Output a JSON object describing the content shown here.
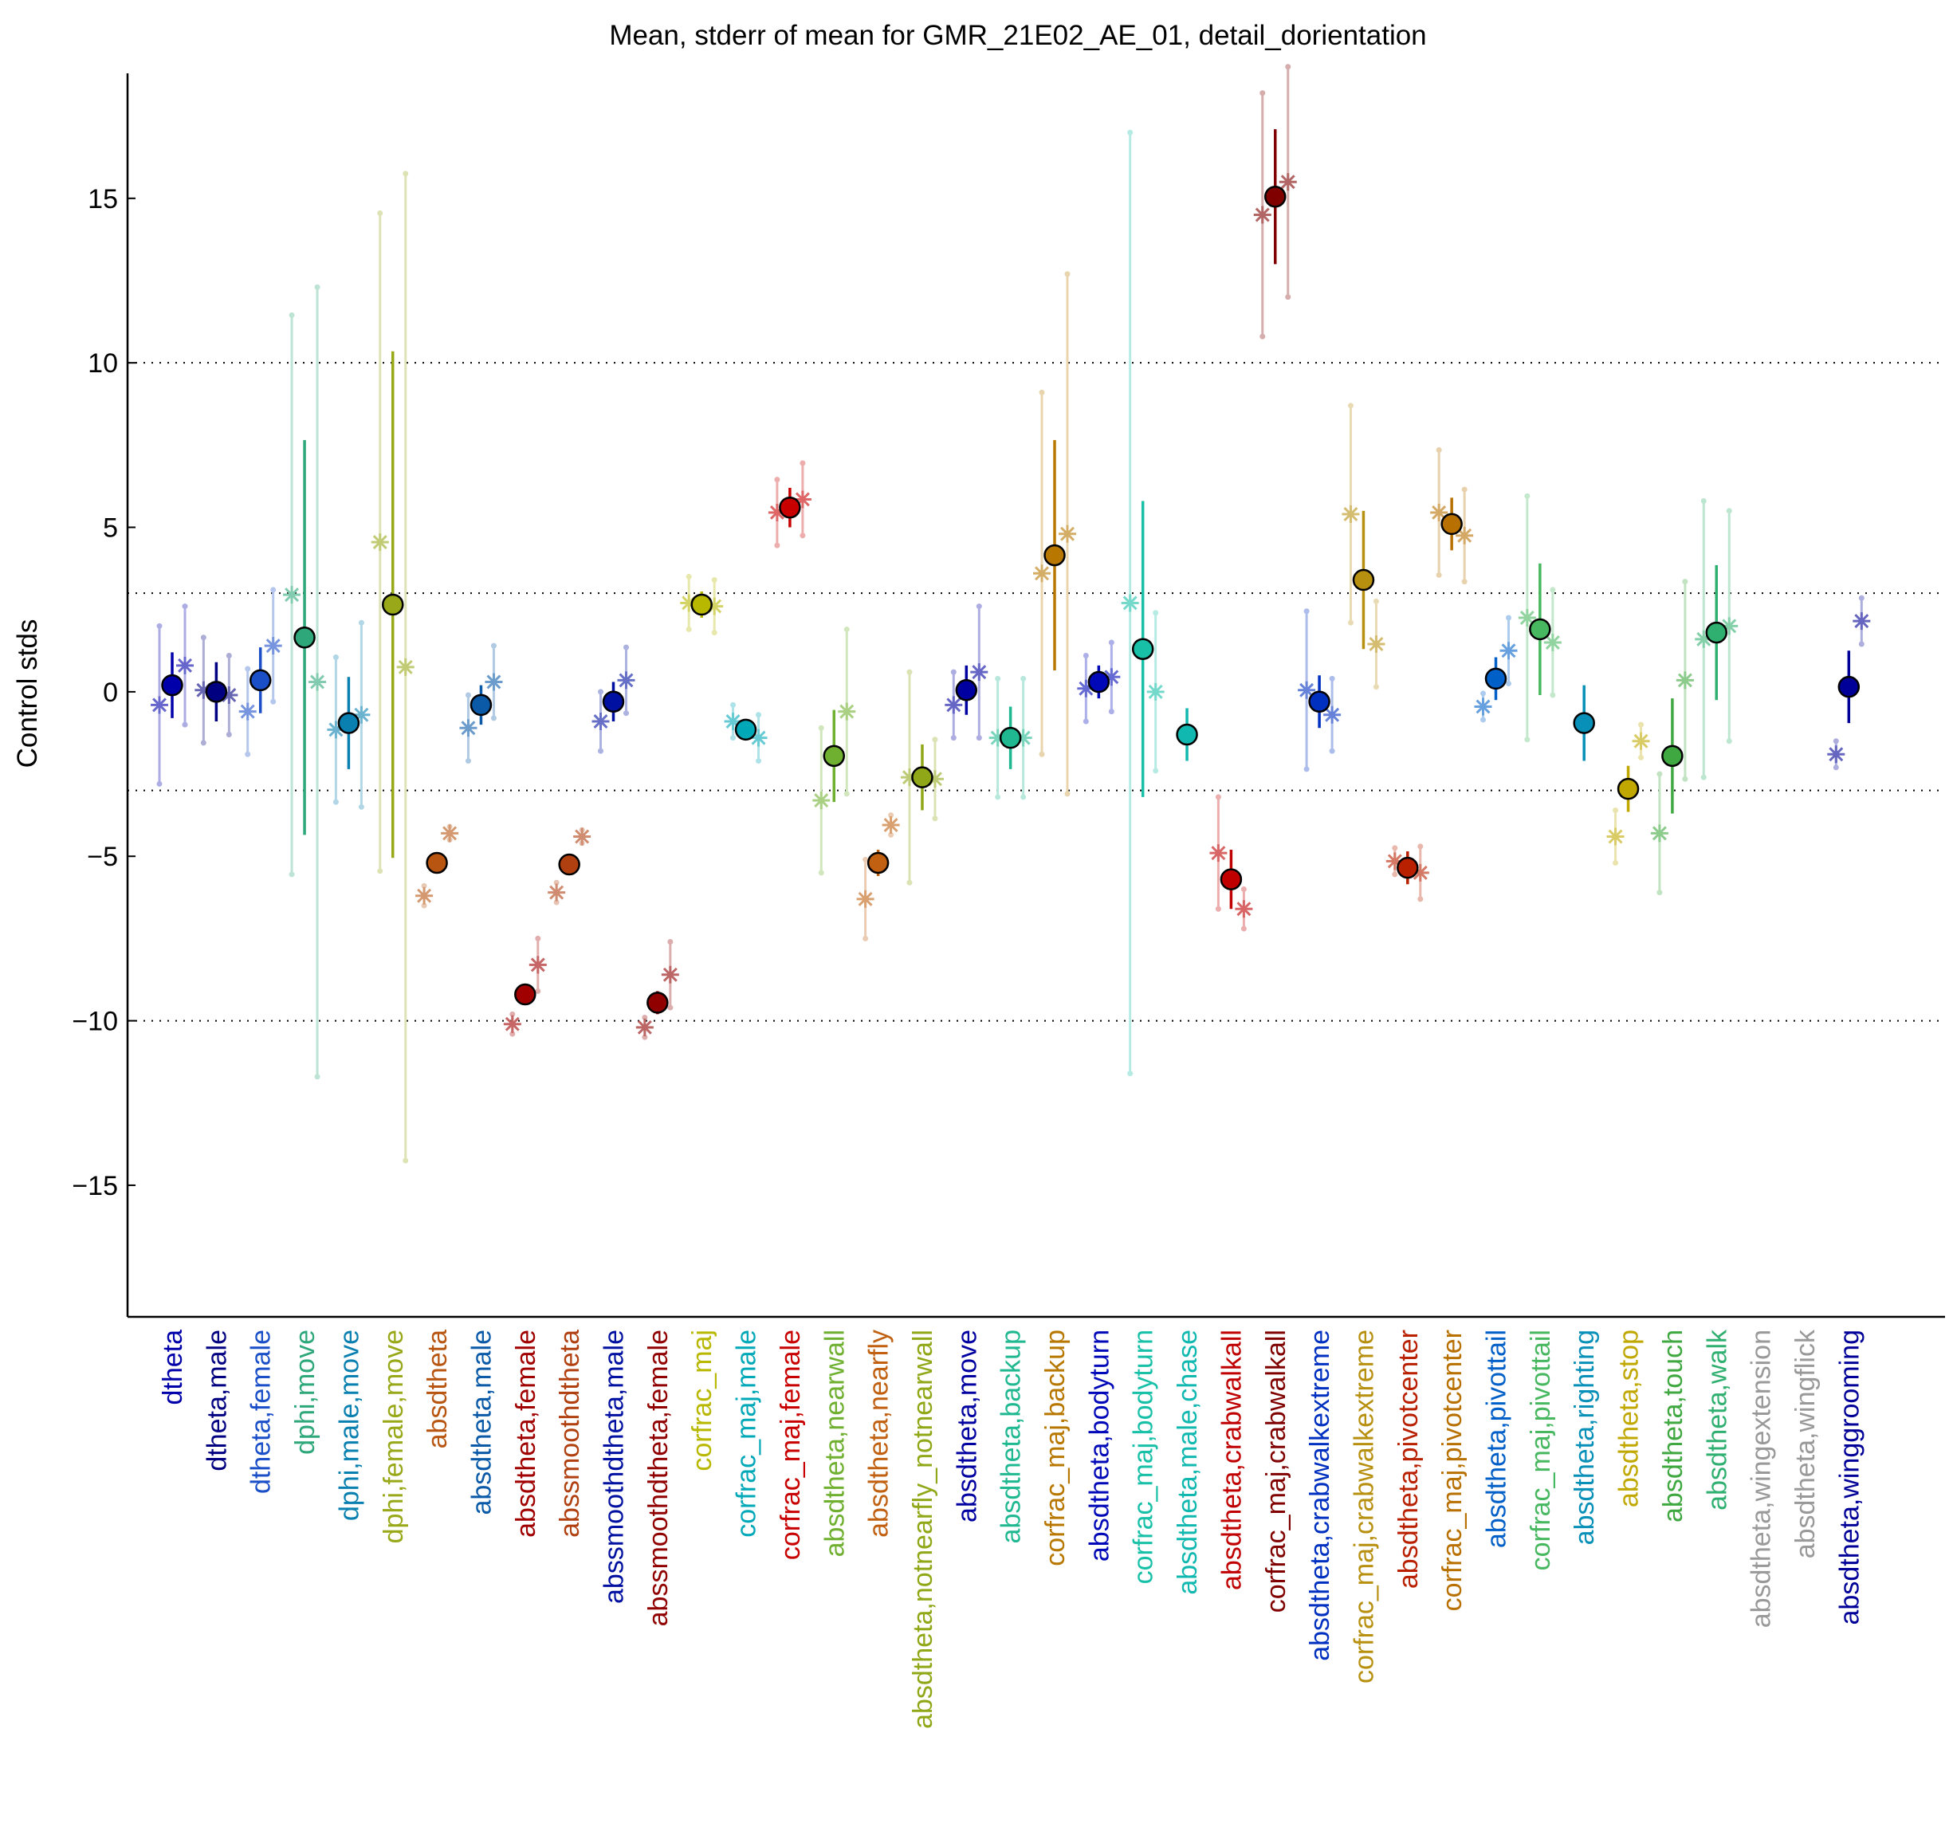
{
  "chart_data": {
    "type": "scatter",
    "title": "Mean, stderr of mean for GMR_21E02_AE_01, detail_dorientation",
    "xlabel": "",
    "ylabel": "Control stds",
    "ylim": [
      -19,
      18.8
    ],
    "yticks": [
      -15,
      -10,
      -5,
      0,
      5,
      10,
      15
    ],
    "ytick_labels": [
      "−15",
      "−10",
      "−5",
      "0",
      "5",
      "10",
      "15"
    ],
    "reference_lines": [
      -10,
      -3,
      3,
      10
    ],
    "reference_line_style": "dotted",
    "categories": [
      {
        "label": "dtheta",
        "color": "#0000aa",
        "mean": 0.2,
        "se": 1.0,
        "sex": [
          {
            "v": -0.4,
            "se": 2.4
          },
          {
            "v": 0.8,
            "se": 1.8
          }
        ]
      },
      {
        "label": "dtheta,male",
        "color": "#000080",
        "mean": 0.0,
        "se": 0.9,
        "sex": [
          {
            "v": 0.05,
            "se": 1.6
          },
          {
            "v": -0.1,
            "se": 1.2
          }
        ]
      },
      {
        "label": "dtheta,female",
        "color": "#1a4fc8",
        "mean": 0.35,
        "se": 1.0,
        "sex": [
          {
            "v": -0.6,
            "se": 1.3
          },
          {
            "v": 1.4,
            "se": 1.7
          }
        ]
      },
      {
        "label": "dphi,move",
        "color": "#2ea87a",
        "mean": 1.65,
        "se": 6.0,
        "sex": [
          {
            "v": 2.95,
            "se": 8.5
          },
          {
            "v": 0.3,
            "se": 12.0
          }
        ]
      },
      {
        "label": "dphi,male,move",
        "color": "#0a80b0",
        "mean": -0.95,
        "se": 1.4,
        "sex": [
          {
            "v": -1.15,
            "se": 2.2
          },
          {
            "v": -0.7,
            "se": 2.8
          }
        ]
      },
      {
        "label": "dphi,female,move",
        "color": "#98a818",
        "mean": 2.65,
        "se": 7.7,
        "sex": [
          {
            "v": 4.55,
            "se": 10.0
          },
          {
            "v": 0.75,
            "se": 15.0
          }
        ]
      },
      {
        "label": "absdtheta",
        "color": "#b85510",
        "mean": -5.2,
        "se": 0.15,
        "sex": [
          {
            "v": -6.2,
            "se": 0.3
          },
          {
            "v": -4.3,
            "se": 0.2
          }
        ]
      },
      {
        "label": "absdtheta,male",
        "color": "#0a5aa8",
        "mean": -0.4,
        "se": 0.6,
        "sex": [
          {
            "v": -1.1,
            "se": 1.0
          },
          {
            "v": 0.3,
            "se": 1.1
          }
        ]
      },
      {
        "label": "absdtheta,female",
        "color": "#a00000",
        "mean": -9.2,
        "se": 0.3,
        "sex": [
          {
            "v": -10.1,
            "se": 0.3
          },
          {
            "v": -8.3,
            "se": 0.8
          }
        ]
      },
      {
        "label": "abssmoothdtheta",
        "color": "#b04010",
        "mean": -5.25,
        "se": 0.15,
        "sex": [
          {
            "v": -6.1,
            "se": 0.3
          },
          {
            "v": -4.4,
            "se": 0.2
          }
        ]
      },
      {
        "label": "abssmoothdtheta,male",
        "color": "#0010a0",
        "mean": -0.3,
        "se": 0.6,
        "sex": [
          {
            "v": -0.9,
            "se": 0.9
          },
          {
            "v": 0.35,
            "se": 1.0
          }
        ]
      },
      {
        "label": "abssmoothdtheta,female",
        "color": "#900000",
        "mean": -9.45,
        "se": 0.35,
        "sex": [
          {
            "v": -10.2,
            "se": 0.3
          },
          {
            "v": -8.6,
            "se": 1.0
          }
        ]
      },
      {
        "label": "corfrac_maj",
        "color": "#b8b800",
        "mean": 2.65,
        "se": 0.4,
        "sex": [
          {
            "v": 2.7,
            "se": 0.8
          },
          {
            "v": 2.6,
            "se": 0.8
          }
        ]
      },
      {
        "label": "corfrac_maj,male",
        "color": "#00a8b8",
        "mean": -1.15,
        "se": 0.3,
        "sex": [
          {
            "v": -0.9,
            "se": 0.5
          },
          {
            "v": -1.4,
            "se": 0.7
          }
        ]
      },
      {
        "label": "corfrac_maj,female",
        "color": "#c80000",
        "mean": 5.6,
        "se": 0.6,
        "sex": [
          {
            "v": 5.45,
            "se": 1.0
          },
          {
            "v": 5.85,
            "se": 1.1
          }
        ]
      },
      {
        "label": "absdtheta,nearwall",
        "color": "#70b030",
        "mean": -1.95,
        "se": 1.4,
        "sex": [
          {
            "v": -3.3,
            "se": 2.2
          },
          {
            "v": -0.6,
            "se": 2.5
          }
        ]
      },
      {
        "label": "absdtheta,nearfly",
        "color": "#c06010",
        "mean": -5.2,
        "se": 0.4,
        "sex": [
          {
            "v": -6.3,
            "se": 1.2
          },
          {
            "v": -4.05,
            "se": 0.3
          }
        ]
      },
      {
        "label": "absdtheta,notnearfly_notnearwall",
        "color": "#90a818",
        "mean": -2.6,
        "se": 1.0,
        "sex": [
          {
            "v": -2.6,
            "se": 3.2
          },
          {
            "v": -2.65,
            "se": 1.2
          }
        ]
      },
      {
        "label": "absdtheta,move",
        "color": "#0000a0",
        "mean": 0.05,
        "se": 0.75,
        "sex": [
          {
            "v": -0.4,
            "se": 1.0
          },
          {
            "v": 0.6,
            "se": 2.0
          }
        ]
      },
      {
        "label": "absdtheta,backup",
        "color": "#20b890",
        "mean": -1.4,
        "se": 0.95,
        "sex": [
          {
            "v": -1.4,
            "se": 1.8
          },
          {
            "v": -1.4,
            "se": 1.8
          }
        ]
      },
      {
        "label": "corfrac_maj,backup",
        "color": "#b87800",
        "mean": 4.15,
        "se": 3.5,
        "sex": [
          {
            "v": 3.6,
            "se": 5.5
          },
          {
            "v": 4.8,
            "se": 7.9
          }
        ]
      },
      {
        "label": "absdtheta,bodyturn",
        "color": "#0008b8",
        "mean": 0.3,
        "se": 0.5,
        "sex": [
          {
            "v": 0.1,
            "se": 1.0
          },
          {
            "v": 0.45,
            "se": 1.05
          }
        ]
      },
      {
        "label": "corfrac_maj,bodyturn",
        "color": "#18c0a8",
        "mean": 1.3,
        "se": 4.5,
        "sex": [
          {
            "v": 2.7,
            "se": 14.3
          },
          {
            "v": 0.0,
            "se": 2.4
          }
        ]
      },
      {
        "label": "absdtheta,male,chase",
        "color": "#10b8b0",
        "mean": -1.3,
        "se": 0.8,
        "sex": []
      },
      {
        "label": "absdtheta,crabwalkall",
        "color": "#c00000",
        "mean": -5.7,
        "se": 0.9,
        "sex": [
          {
            "v": -4.9,
            "se": 1.7
          },
          {
            "v": -6.6,
            "se": 0.6
          }
        ]
      },
      {
        "label": "corfrac_maj,crabwalkall",
        "color": "#800000",
        "mean": 15.05,
        "se": 2.05,
        "sex": [
          {
            "v": 14.5,
            "se": 3.7
          },
          {
            "v": 15.5,
            "se": 3.5
          }
        ]
      },
      {
        "label": "absdtheta,crabwalkextreme",
        "color": "#0030c0",
        "mean": -0.3,
        "se": 0.8,
        "sex": [
          {
            "v": 0.05,
            "se": 2.4
          },
          {
            "v": -0.7,
            "se": 1.1
          }
        ]
      },
      {
        "label": "corfrac_maj,crabwalkextreme",
        "color": "#b89010",
        "mean": 3.4,
        "se": 2.1,
        "sex": [
          {
            "v": 5.4,
            "se": 3.3
          },
          {
            "v": 1.45,
            "se": 1.3
          }
        ]
      },
      {
        "label": "absdtheta,pivotcenter",
        "color": "#b82000",
        "mean": -5.35,
        "se": 0.5,
        "sex": [
          {
            "v": -5.15,
            "se": 0.4
          },
          {
            "v": -5.5,
            "se": 0.8
          }
        ]
      },
      {
        "label": "corfrac_maj,pivotcenter",
        "color": "#b87000",
        "mean": 5.1,
        "se": 0.8,
        "sex": [
          {
            "v": 5.45,
            "se": 1.9
          },
          {
            "v": 4.75,
            "se": 1.4
          }
        ]
      },
      {
        "label": "absdtheta,pivottail",
        "color": "#0060c8",
        "mean": 0.4,
        "se": 0.65,
        "sex": [
          {
            "v": -0.45,
            "se": 0.4
          },
          {
            "v": 1.25,
            "se": 1.0
          }
        ]
      },
      {
        "label": "corfrac_maj,pivottail",
        "color": "#48b860",
        "mean": 1.9,
        "se": 2.0,
        "sex": [
          {
            "v": 2.25,
            "se": 3.7
          },
          {
            "v": 1.5,
            "se": 1.6
          }
        ]
      },
      {
        "label": "absdtheta,righting",
        "color": "#0890b8",
        "mean": -0.95,
        "se": 1.15,
        "sex": []
      },
      {
        "label": "absdtheta,stop",
        "color": "#c0a800",
        "mean": -2.95,
        "se": 0.7,
        "sex": [
          {
            "v": -4.4,
            "se": 0.8
          },
          {
            "v": -1.5,
            "se": 0.5
          }
        ]
      },
      {
        "label": "absdtheta,touch",
        "color": "#40a840",
        "mean": -1.95,
        "se": 1.75,
        "sex": [
          {
            "v": -4.3,
            "se": 1.8
          },
          {
            "v": 0.35,
            "se": 3.0
          }
        ]
      },
      {
        "label": "absdtheta,walk",
        "color": "#30b070",
        "mean": 1.8,
        "se": 2.05,
        "sex": [
          {
            "v": 1.6,
            "se": 4.2
          },
          {
            "v": 2.0,
            "se": 3.5
          }
        ]
      },
      {
        "label": "absdtheta,wingextension",
        "color": "#999999",
        "mean": null,
        "se": null,
        "sex": []
      },
      {
        "label": "absdtheta,wingflick",
        "color": "#999999",
        "mean": null,
        "se": null,
        "sex": []
      },
      {
        "label": "absdtheta,winggrooming",
        "color": "#000098",
        "mean": 0.15,
        "se": 1.1,
        "sex": [
          {
            "v": -1.9,
            "se": 0.4
          },
          {
            "v": 2.15,
            "se": 0.7
          }
        ]
      }
    ]
  }
}
